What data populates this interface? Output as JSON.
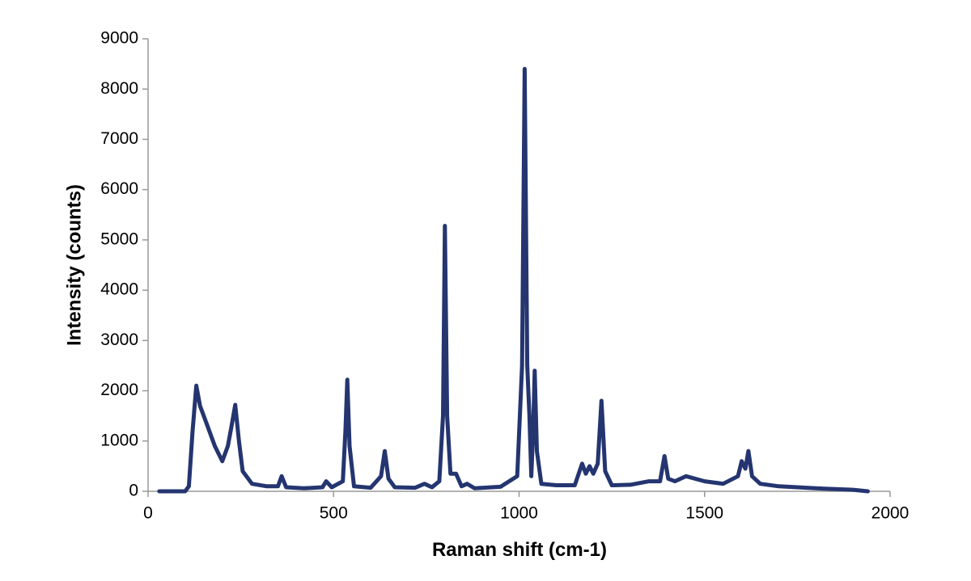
{
  "chart_data": {
    "type": "line",
    "x_label": "Raman shift (cm-1)",
    "y_label": "Intensity (counts)",
    "xlim": [
      0,
      2000
    ],
    "xticks": [
      0,
      500,
      1000,
      1500,
      2000
    ],
    "ylim": [
      0,
      9000
    ],
    "yticks": [
      0,
      1000,
      2000,
      3000,
      4000,
      5000,
      6000,
      7000,
      8000,
      9000
    ],
    "series": [
      {
        "color": "#243570",
        "x": [
          30,
          100,
          110,
          120,
          130,
          140,
          160,
          180,
          200,
          215,
          225,
          235,
          245,
          255,
          280,
          320,
          350,
          360,
          372,
          420,
          470,
          480,
          495,
          525,
          532,
          537,
          543,
          555,
          600,
          628,
          638,
          648,
          665,
          720,
          745,
          765,
          785,
          795,
          800,
          806,
          815,
          830,
          845,
          860,
          880,
          950,
          995,
          1008,
          1015,
          1022,
          1028,
          1033,
          1038,
          1042,
          1048,
          1060,
          1100,
          1150,
          1170,
          1180,
          1190,
          1200,
          1212,
          1222,
          1232,
          1250,
          1300,
          1350,
          1380,
          1392,
          1402,
          1420,
          1450,
          1500,
          1550,
          1590,
          1600,
          1610,
          1618,
          1628,
          1650,
          1700,
          1800,
          1900,
          1940
        ],
        "values": [
          0,
          0,
          100,
          1200,
          2100,
          1700,
          1300,
          900,
          600,
          900,
          1300,
          1720,
          1000,
          400,
          150,
          100,
          100,
          300,
          80,
          60,
          80,
          200,
          80,
          200,
          1200,
          2220,
          900,
          100,
          70,
          300,
          800,
          250,
          80,
          70,
          150,
          80,
          200,
          1500,
          5280,
          1500,
          350,
          350,
          100,
          150,
          60,
          90,
          300,
          2500,
          8400,
          2500,
          1500,
          300,
          1200,
          2400,
          800,
          150,
          120,
          120,
          550,
          350,
          500,
          350,
          550,
          1800,
          400,
          120,
          130,
          200,
          200,
          700,
          250,
          200,
          300,
          200,
          150,
          300,
          600,
          450,
          800,
          300,
          150,
          100,
          60,
          30,
          0
        ]
      }
    ]
  }
}
